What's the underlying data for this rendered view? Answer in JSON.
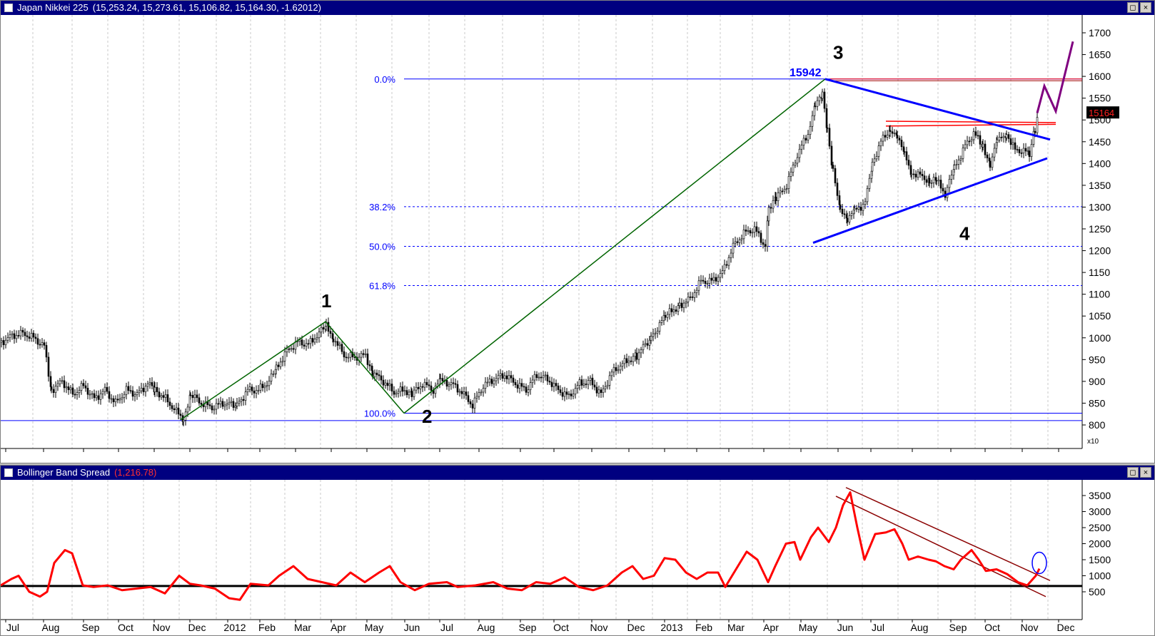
{
  "price_pane": {
    "title": "Japan Nikkei 225",
    "ohlc_text": "(15,253.24, 15,273.61, 15,106.82, 15,164.30, -1.62012)",
    "multiplier": "x10",
    "last_price_label": "15164",
    "peak_label": "15942",
    "wave_labels": [
      "1",
      "2",
      "3",
      "4"
    ],
    "colors": {
      "background": "#ffffff",
      "titlebar": "#000080",
      "fib": "#0000ff",
      "impulse": "#006400",
      "triangle": "#0000ff",
      "projection": "#800080",
      "resistance": "#ff0000"
    }
  },
  "bb_pane": {
    "title": "Bollinger Band Spread",
    "value_text": "(1,216.78)",
    "colors": {
      "line": "#ff0000",
      "baseline": "#000000",
      "channel": "#8b0000",
      "circle": "#0000ff"
    }
  },
  "window_buttons": {
    "restore": "◻",
    "close": "×"
  },
  "chart_data": [
    {
      "type": "candlestick",
      "title": "Japan Nikkei 225",
      "yaxis_ticks": [
        "1700",
        "1650",
        "1600",
        "1550",
        "1500",
        "1450",
        "1400",
        "1350",
        "1300",
        "1250",
        "1200",
        "1150",
        "1100",
        "1050",
        "1000",
        "950",
        "900",
        "850",
        "800"
      ],
      "ylim": [
        795,
        1710
      ],
      "y_multiplier": "x10",
      "x_tick_labels": [
        "Jul",
        "Aug",
        "Sep",
        "Oct",
        "Nov",
        "Dec",
        "2012",
        "Feb",
        "Mar",
        "Apr",
        "May",
        "Jun",
        "Jul",
        "Aug",
        "Sep",
        "Oct",
        "Nov",
        "Dec",
        "2013",
        "Feb",
        "Mar",
        "Apr",
        "May",
        "Jun",
        "Jul",
        "Aug",
        "Sep",
        "Oct",
        "Nov",
        "Dec"
      ],
      "fibonacci_levels": [
        {
          "label": "0.0%",
          "value": 1594
        },
        {
          "label": "38.2%",
          "value": 1301
        },
        {
          "label": "50.0%",
          "value": 1210
        },
        {
          "label": "61.8%",
          "value": 1120
        },
        {
          "label": "100.0%",
          "value": 827
        }
      ],
      "support_level": 810,
      "wave_points": [
        {
          "label": "1",
          "value": 1037
        },
        {
          "label": "2",
          "value": 827
        },
        {
          "label": "3",
          "value": 1594
        },
        {
          "label": "4",
          "value": 1250
        }
      ],
      "peak_annotation": 15942,
      "last_close": 15164,
      "close_path": [
        [
          0,
          990
        ],
        [
          15,
          1005
        ],
        [
          30,
          1010
        ],
        [
          45,
          1000
        ],
        [
          60,
          980
        ],
        [
          70,
          880
        ],
        [
          85,
          900
        ],
        [
          100,
          870
        ],
        [
          115,
          890
        ],
        [
          130,
          860
        ],
        [
          145,
          880
        ],
        [
          160,
          850
        ],
        [
          175,
          880
        ],
        [
          190,
          870
        ],
        [
          205,
          895
        ],
        [
          215,
          880
        ],
        [
          230,
          860
        ],
        [
          245,
          830
        ],
        [
          255,
          815
        ],
        [
          265,
          870
        ],
        [
          280,
          850
        ],
        [
          295,
          840
        ],
        [
          310,
          850
        ],
        [
          330,
          845
        ],
        [
          345,
          880
        ],
        [
          360,
          880
        ],
        [
          375,
          900
        ],
        [
          385,
          930
        ],
        [
          400,
          970
        ],
        [
          415,
          990
        ],
        [
          430,
          985
        ],
        [
          445,
          1010
        ],
        [
          455,
          1030
        ],
        [
          465,
          1000
        ],
        [
          480,
          960
        ],
        [
          495,
          955
        ],
        [
          510,
          960
        ],
        [
          520,
          920
        ],
        [
          535,
          900
        ],
        [
          550,
          875
        ],
        [
          565,
          880
        ],
        [
          575,
          870
        ],
        [
          590,
          895
        ],
        [
          605,
          880
        ],
        [
          615,
          900
        ],
        [
          630,
          895
        ],
        [
          645,
          875
        ],
        [
          660,
          845
        ],
        [
          675,
          890
        ],
        [
          690,
          905
        ],
        [
          705,
          915
        ],
        [
          720,
          895
        ],
        [
          735,
          880
        ],
        [
          750,
          915
        ],
        [
          765,
          905
        ],
        [
          780,
          880
        ],
        [
          795,
          865
        ],
        [
          810,
          895
        ],
        [
          825,
          900
        ],
        [
          840,
          870
        ],
        [
          855,
          920
        ],
        [
          870,
          940
        ],
        [
          890,
          960
        ],
        [
          910,
          1000
        ],
        [
          930,
          1050
        ],
        [
          950,
          1075
        ],
        [
          965,
          1090
        ],
        [
          980,
          1130
        ],
        [
          995,
          1130
        ],
        [
          1010,
          1150
        ],
        [
          1025,
          1210
        ],
        [
          1040,
          1240
        ],
        [
          1055,
          1250
        ],
        [
          1070,
          1210
        ],
        [
          1075,
          1300
        ],
        [
          1085,
          1320
        ],
        [
          1100,
          1350
        ],
        [
          1115,
          1420
        ],
        [
          1130,
          1470
        ],
        [
          1140,
          1530
        ],
        [
          1150,
          1560
        ],
        [
          1157,
          1480
        ],
        [
          1165,
          1380
        ],
        [
          1175,
          1300
        ],
        [
          1185,
          1270
        ],
        [
          1195,
          1290
        ],
        [
          1210,
          1310
        ],
        [
          1220,
          1400
        ],
        [
          1232,
          1450
        ],
        [
          1245,
          1480
        ],
        [
          1255,
          1460
        ],
        [
          1265,
          1420
        ],
        [
          1275,
          1380
        ],
        [
          1290,
          1370
        ],
        [
          1300,
          1360
        ],
        [
          1310,
          1360
        ],
        [
          1322,
          1330
        ],
        [
          1335,
          1390
        ],
        [
          1350,
          1440
        ],
        [
          1362,
          1470
        ],
        [
          1375,
          1440
        ],
        [
          1385,
          1400
        ],
        [
          1395,
          1450
        ],
        [
          1408,
          1470
        ],
        [
          1420,
          1430
        ],
        [
          1432,
          1430
        ],
        [
          1440,
          1420
        ],
        [
          1448,
          1480
        ],
        [
          1452,
          1516
        ]
      ],
      "projection_path": [
        [
          1452,
          1516
        ],
        [
          1462,
          1578
        ],
        [
          1478,
          1520
        ],
        [
          1502,
          1680
        ]
      ]
    },
    {
      "type": "line",
      "title": "Bollinger Band Spread",
      "current_value": 1216.78,
      "yaxis_ticks": [
        "3500",
        "3000",
        "2500",
        "2000",
        "1500",
        "1000",
        "500"
      ],
      "ylim": [
        0,
        3900
      ],
      "baseline": 680,
      "x_tick_labels": [
        "Jul",
        "Aug",
        "Sep",
        "Oct",
        "Nov",
        "Dec",
        "2012",
        "Feb",
        "Mar",
        "Apr",
        "May",
        "Jun",
        "Jul",
        "Aug",
        "Sep",
        "Oct",
        "Nov",
        "Dec",
        "2013",
        "Feb",
        "Mar",
        "Apr",
        "May",
        "Jun",
        "Jul",
        "Aug",
        "Sep",
        "Oct",
        "Nov",
        "Dec"
      ],
      "series": [
        {
          "values": [
            [
              0,
              700
            ],
            [
              15,
              900
            ],
            [
              25,
              1000
            ],
            [
              40,
              500
            ],
            [
              55,
              350
            ],
            [
              65,
              500
            ],
            [
              75,
              1400
            ],
            [
              90,
              1800
            ],
            [
              100,
              1700
            ],
            [
              115,
              700
            ],
            [
              130,
              650
            ],
            [
              150,
              700
            ],
            [
              170,
              550
            ],
            [
              190,
              600
            ],
            [
              210,
              650
            ],
            [
              230,
              450
            ],
            [
              250,
              1000
            ],
            [
              265,
              750
            ],
            [
              280,
              700
            ],
            [
              300,
              600
            ],
            [
              320,
              300
            ],
            [
              335,
              250
            ],
            [
              350,
              750
            ],
            [
              375,
              700
            ],
            [
              390,
              1000
            ],
            [
              410,
              1300
            ],
            [
              430,
              900
            ],
            [
              450,
              800
            ],
            [
              470,
              700
            ],
            [
              490,
              1100
            ],
            [
              510,
              800
            ],
            [
              530,
              1100
            ],
            [
              545,
              1300
            ],
            [
              560,
              800
            ],
            [
              580,
              550
            ],
            [
              600,
              750
            ],
            [
              625,
              800
            ],
            [
              640,
              650
            ],
            [
              665,
              700
            ],
            [
              690,
              800
            ],
            [
              710,
              600
            ],
            [
              730,
              550
            ],
            [
              750,
              800
            ],
            [
              770,
              750
            ],
            [
              790,
              950
            ],
            [
              810,
              650
            ],
            [
              830,
              550
            ],
            [
              850,
              700
            ],
            [
              870,
              1100
            ],
            [
              885,
              1300
            ],
            [
              900,
              900
            ],
            [
              915,
              1000
            ],
            [
              930,
              1550
            ],
            [
              945,
              1500
            ],
            [
              960,
              1100
            ],
            [
              975,
              900
            ],
            [
              990,
              1100
            ],
            [
              1005,
              1100
            ],
            [
              1015,
              650
            ],
            [
              1030,
              1200
            ],
            [
              1045,
              1750
            ],
            [
              1060,
              1500
            ],
            [
              1075,
              800
            ],
            [
              1085,
              1300
            ],
            [
              1100,
              2000
            ],
            [
              1112,
              2050
            ],
            [
              1120,
              1500
            ],
            [
              1135,
              2200
            ],
            [
              1145,
              2500
            ],
            [
              1160,
              2050
            ],
            [
              1170,
              2500
            ],
            [
              1180,
              3200
            ],
            [
              1190,
              3600
            ],
            [
              1200,
              2500
            ],
            [
              1210,
              1500
            ],
            [
              1225,
              2300
            ],
            [
              1240,
              2350
            ],
            [
              1252,
              2450
            ],
            [
              1263,
              2000
            ],
            [
              1272,
              1500
            ],
            [
              1285,
              1600
            ],
            [
              1300,
              1500
            ],
            [
              1310,
              1450
            ],
            [
              1322,
              1300
            ],
            [
              1335,
              1200
            ],
            [
              1345,
              1500
            ],
            [
              1360,
              1800
            ],
            [
              1370,
              1500
            ],
            [
              1380,
              1150
            ],
            [
              1395,
              1200
            ],
            [
              1410,
              1050
            ],
            [
              1425,
              800
            ],
            [
              1438,
              700
            ],
            [
              1450,
              1000
            ],
            [
              1455,
              1220
            ]
          ]
        }
      ]
    }
  ]
}
